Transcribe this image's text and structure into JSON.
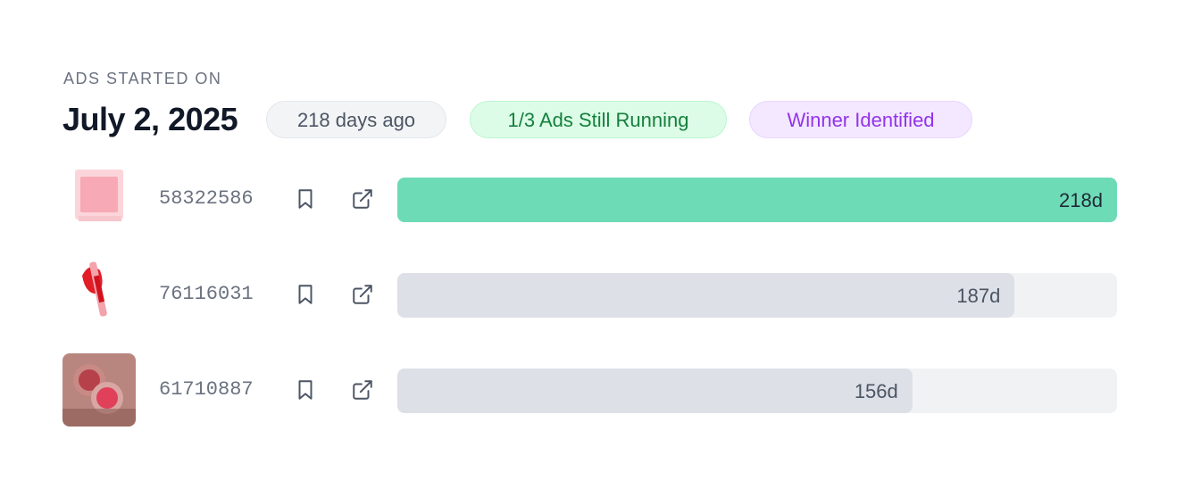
{
  "header": {
    "label": "ADS STARTED ON",
    "date": "July 2, 2025",
    "badges": [
      {
        "text": "218 days ago",
        "style": "neutral"
      },
      {
        "text": "1/3 Ads Still Running",
        "style": "success"
      },
      {
        "text": "Winner Identified",
        "style": "purple"
      }
    ]
  },
  "ads": [
    {
      "id": "58322586",
      "days": 218,
      "days_label": "218d",
      "running": true
    },
    {
      "id": "76116031",
      "days": 187,
      "days_label": "187d",
      "running": false
    },
    {
      "id": "61710887",
      "days": 156,
      "days_label": "156d",
      "running": false
    }
  ]
}
